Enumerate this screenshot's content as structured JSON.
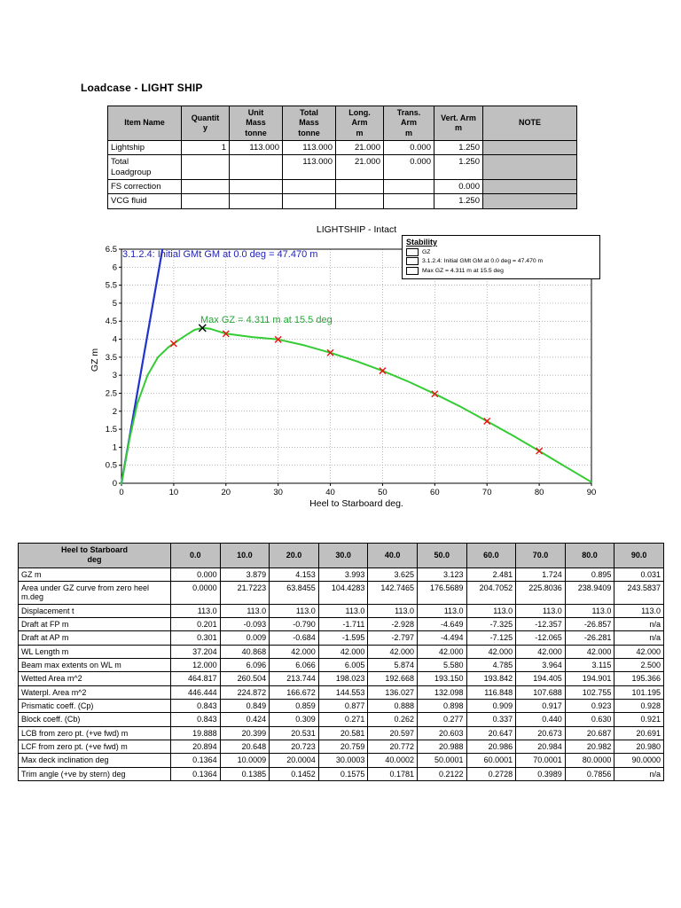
{
  "page": {
    "title": "Loadcase - LIGHT SHIP"
  },
  "load_table": {
    "headers": [
      "Item Name",
      "Quantit\ny",
      "Unit\nMass\ntonne",
      "Total\nMass\ntonne",
      "Long.\nArm\nm",
      "Trans.\nArm\nm",
      "Vert. Arm\nm",
      "NOTE"
    ],
    "rows": [
      [
        "Lightship",
        "1",
        "113.000",
        "113.000",
        "21.000",
        "0.000",
        "1.250",
        ""
      ],
      [
        "Total\nLoadgroup",
        "",
        "",
        "113.000",
        "21.000",
        "0.000",
        "1.250",
        ""
      ],
      [
        "FS correction",
        "",
        "",
        "",
        "",
        "",
        "0.000",
        ""
      ],
      [
        "VCG fluid",
        "",
        "",
        "",
        "",
        "",
        "1.250",
        ""
      ]
    ]
  },
  "chart_data": {
    "type": "line",
    "title": "LIGHTSHIP - Intact",
    "xlabel": "Heel to Starboard  deg.",
    "ylabel": "GZ  m",
    "xlim": [
      0,
      90
    ],
    "ylim": [
      0,
      6.5
    ],
    "x_ticks": [
      0,
      10,
      20,
      30,
      40,
      50,
      60,
      70,
      80,
      90
    ],
    "y_ticks": [
      0,
      0.5,
      1,
      1.5,
      2,
      2.5,
      3,
      3.5,
      4,
      4.5,
      5,
      5.5,
      6,
      6.5
    ],
    "grid": true,
    "legend": {
      "title": "Stability",
      "entries": [
        "GZ",
        "3.1.2.4: Initial GMt GM at 0.0 deg = 47.470 m",
        "Max GZ = 4.311 m at 15.5 deg"
      ]
    },
    "annotations": [
      {
        "name": "initial-gmt",
        "text": "3.1.2.4: Initial GMt GM at 0.0 deg = 47.470 m",
        "color": "#2222bb"
      },
      {
        "name": "max-gz",
        "text": "Max GZ = 4.311 m at 15.5 deg",
        "color": "#22aa33"
      }
    ],
    "gm_line": {
      "gm_m": 47.47,
      "color": "#2233cc"
    },
    "max_point": {
      "x": 15.5,
      "y": 4.311,
      "label": "Max GZ = 4.311 m at 15.5 deg"
    },
    "series": [
      {
        "name": "GZ",
        "color": "#33cc33",
        "marker_color": "#ee1111",
        "x": [
          0,
          10,
          20,
          30,
          40,
          50,
          60,
          70,
          80,
          90
        ],
        "y": [
          0,
          3.879,
          4.153,
          3.993,
          3.625,
          3.123,
          2.481,
          1.724,
          0.895,
          0.031
        ],
        "curve_x": [
          0,
          1.5,
          3,
          5,
          7,
          9,
          10,
          12,
          14,
          15.5,
          17,
          20,
          25,
          30,
          35,
          40,
          45,
          50,
          55,
          60,
          65,
          70,
          75,
          80,
          85,
          90
        ],
        "curve_y": [
          0,
          1.2,
          2.2,
          3.0,
          3.5,
          3.78,
          3.879,
          4.08,
          4.26,
          4.311,
          4.29,
          4.153,
          4.06,
          3.993,
          3.83,
          3.625,
          3.39,
          3.123,
          2.82,
          2.481,
          2.12,
          1.724,
          1.32,
          0.895,
          0.46,
          0.031
        ]
      }
    ]
  },
  "stability_table": {
    "corner_label": "Heel to Starboard\ndeg",
    "angles": [
      "0.0",
      "10.0",
      "20.0",
      "30.0",
      "40.0",
      "50.0",
      "60.0",
      "70.0",
      "80.0",
      "90.0"
    ],
    "rows": [
      {
        "label": "GZ m",
        "values": [
          "0.000",
          "3.879",
          "4.153",
          "3.993",
          "3.625",
          "3.123",
          "2.481",
          "1.724",
          "0.895",
          "0.031"
        ]
      },
      {
        "label": "Area under GZ curve from zero heel m.deg",
        "values": [
          "0.0000",
          "21.7223",
          "63.8455",
          "104.4283",
          "142.7465",
          "176.5689",
          "204.7052",
          "225.8036",
          "238.9409",
          "243.5837"
        ]
      },
      {
        "label": "Displacement t",
        "values": [
          "113.0",
          "113.0",
          "113.0",
          "113.0",
          "113.0",
          "113.0",
          "113.0",
          "113.0",
          "113.0",
          "113.0"
        ]
      },
      {
        "label": "Draft at FP m",
        "values": [
          "0.201",
          "-0.093",
          "-0.790",
          "-1.711",
          "-2.928",
          "-4.649",
          "-7.325",
          "-12.357",
          "-26.857",
          "n/a"
        ]
      },
      {
        "label": "Draft at AP m",
        "values": [
          "0.301",
          "0.009",
          "-0.684",
          "-1.595",
          "-2.797",
          "-4.494",
          "-7.125",
          "-12.065",
          "-26.281",
          "n/a"
        ]
      },
      {
        "label": "WL Length m",
        "values": [
          "37.204",
          "40.868",
          "42.000",
          "42.000",
          "42.000",
          "42.000",
          "42.000",
          "42.000",
          "42.000",
          "42.000"
        ]
      },
      {
        "label": "Beam max extents on WL m",
        "values": [
          "12.000",
          "6.096",
          "6.066",
          "6.005",
          "5.874",
          "5.580",
          "4.785",
          "3.964",
          "3.115",
          "2.500"
        ]
      },
      {
        "label": "Wetted Area m^2",
        "values": [
          "464.817",
          "260.504",
          "213.744",
          "198.023",
          "192.668",
          "193.150",
          "193.842",
          "194.405",
          "194.901",
          "195.366"
        ]
      },
      {
        "label": "Waterpl. Area m^2",
        "values": [
          "446.444",
          "224.872",
          "166.672",
          "144.553",
          "136.027",
          "132.098",
          "116.848",
          "107.688",
          "102.755",
          "101.195"
        ]
      },
      {
        "label": "Prismatic coeff. (Cp)",
        "values": [
          "0.843",
          "0.849",
          "0.859",
          "0.877",
          "0.888",
          "0.898",
          "0.909",
          "0.917",
          "0.923",
          "0.928"
        ]
      },
      {
        "label": "Block coeff. (Cb)",
        "values": [
          "0.843",
          "0.424",
          "0.309",
          "0.271",
          "0.262",
          "0.277",
          "0.337",
          "0.440",
          "0.630",
          "0.921"
        ]
      },
      {
        "label": "LCB from zero pt. (+ve fwd) m",
        "values": [
          "19.888",
          "20.399",
          "20.531",
          "20.581",
          "20.597",
          "20.603",
          "20.647",
          "20.673",
          "20.687",
          "20.691"
        ]
      },
      {
        "label": "LCF from zero pt. (+ve fwd) m",
        "values": [
          "20.894",
          "20.648",
          "20.723",
          "20.759",
          "20.772",
          "20.988",
          "20.986",
          "20.984",
          "20.982",
          "20.980"
        ]
      },
      {
        "label": "Max deck inclination deg",
        "values": [
          "0.1364",
          "10.0009",
          "20.0004",
          "30.0003",
          "40.0002",
          "50.0001",
          "60.0001",
          "70.0001",
          "80.0000",
          "90.0000"
        ]
      },
      {
        "label": "Trim angle (+ve by stern) deg",
        "values": [
          "0.1364",
          "0.1385",
          "0.1452",
          "0.1575",
          "0.1781",
          "0.2122",
          "0.2728",
          "0.3989",
          "0.7856",
          "n/a"
        ]
      }
    ]
  }
}
